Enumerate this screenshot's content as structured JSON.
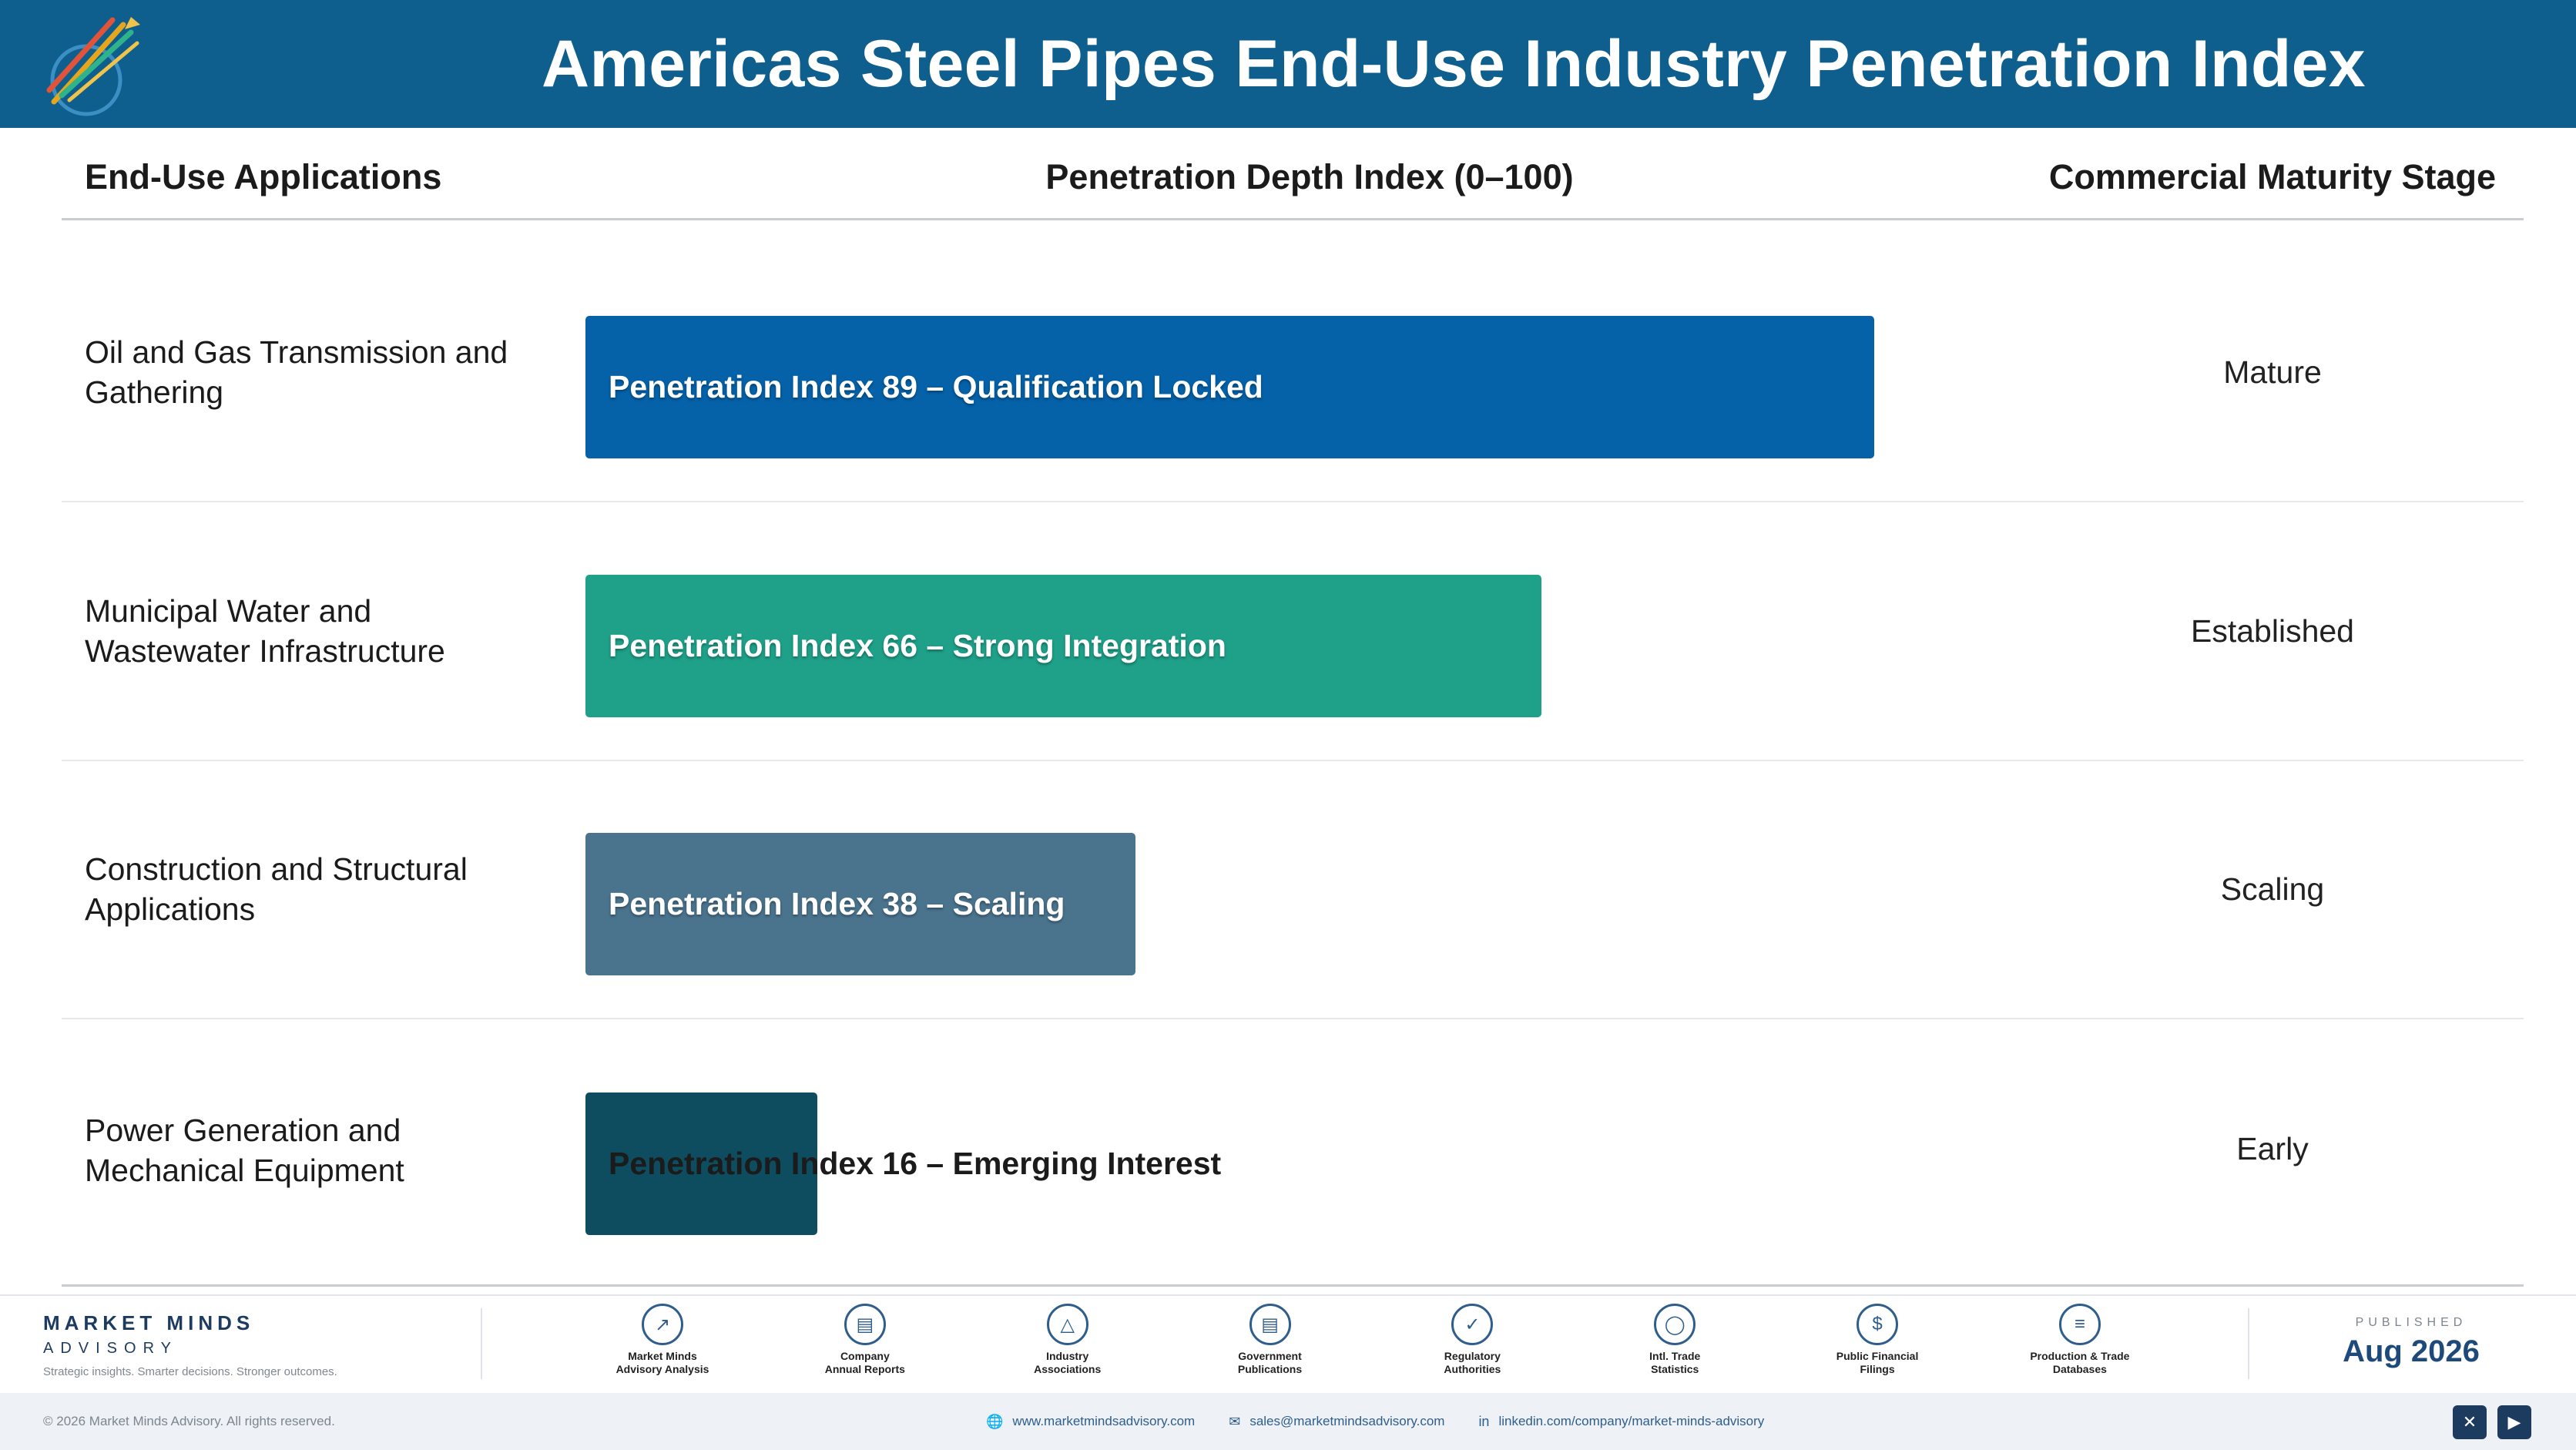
{
  "header": {
    "title": "Americas Steel Pipes End-Use Industry Penetration Index"
  },
  "columns": {
    "applications": "End-Use Applications",
    "index": "Penetration Depth Index (0–100)",
    "stage": "Commercial Maturity Stage"
  },
  "chart_data": {
    "type": "bar",
    "orientation": "horizontal",
    "title": "Americas Steel Pipes End-Use Industry Penetration Index",
    "xlabel": "Penetration Depth Index (0–100)",
    "xlim": [
      0,
      100
    ],
    "categories": [
      "Oil and Gas Transmission and Gathering",
      "Municipal Water and Wastewater Infrastructure",
      "Construction and Structural Applications",
      "Power Generation and Mechanical Equipment"
    ],
    "values": [
      89,
      66,
      38,
      16
    ],
    "bar_labels": [
      "Penetration Index 89 – Qualification Locked",
      "Penetration Index 66 – Strong Integration",
      "Penetration Index 38 – Scaling",
      "Penetration Index 16 – Emerging Interest"
    ],
    "stages": [
      "Mature",
      "Established",
      "Scaling",
      "Early"
    ],
    "colors": [
      "#0561a8",
      "#1ea089",
      "#4a738d",
      "#0e4d5f"
    ],
    "legend": "none",
    "grid": false
  },
  "footer": {
    "brand_name": "MARKET MINDS",
    "brand_sub": "ADVISORY",
    "tagline": "Strategic insights. Smarter decisions. Stronger outcomes.",
    "sources": [
      {
        "label": "Market Minds\nAdvisory Analysis",
        "icon": "chart-line-icon"
      },
      {
        "label": "Company\nAnnual Reports",
        "icon": "document-icon"
      },
      {
        "label": "Industry\nAssociations",
        "icon": "network-icon"
      },
      {
        "label": "Government\nPublications",
        "icon": "government-building-icon"
      },
      {
        "label": "Regulatory\nAuthorities",
        "icon": "shield-check-icon"
      },
      {
        "label": "Intl. Trade\nStatistics",
        "icon": "globe-icon"
      },
      {
        "label": "Public Financial\nFilings",
        "icon": "dollar-coin-icon"
      },
      {
        "label": "Production & Trade\nDatabases",
        "icon": "database-icon"
      }
    ],
    "published_label": "PUBLISHED",
    "published_date": "Aug 2026",
    "copyright": "© 2026 Market Minds Advisory. All rights reserved.",
    "website": "www.marketmindsadvisory.com",
    "email": "sales@marketmindsadvisory.com",
    "linkedin": "linkedin.com/company/market-minds-advisory"
  }
}
